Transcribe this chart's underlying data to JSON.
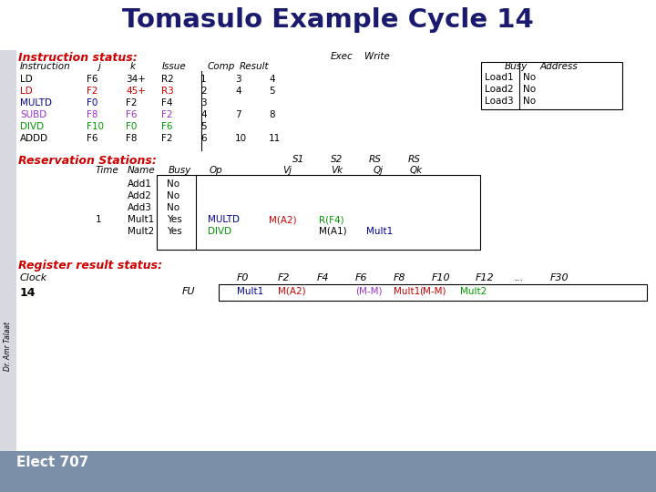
{
  "title": "Tomasulo Example Cycle 14",
  "title_color": "#1a1a6e",
  "bg_color": "#ffffff",
  "footer_bg": "#7b8fa8",
  "footer_text": "Elect 707",
  "label_color": "#cc0000",
  "instr_status_label": "Instruction status:",
  "res_stations_label": "Reservation Stations:",
  "reg_result_label": "Register result status:"
}
